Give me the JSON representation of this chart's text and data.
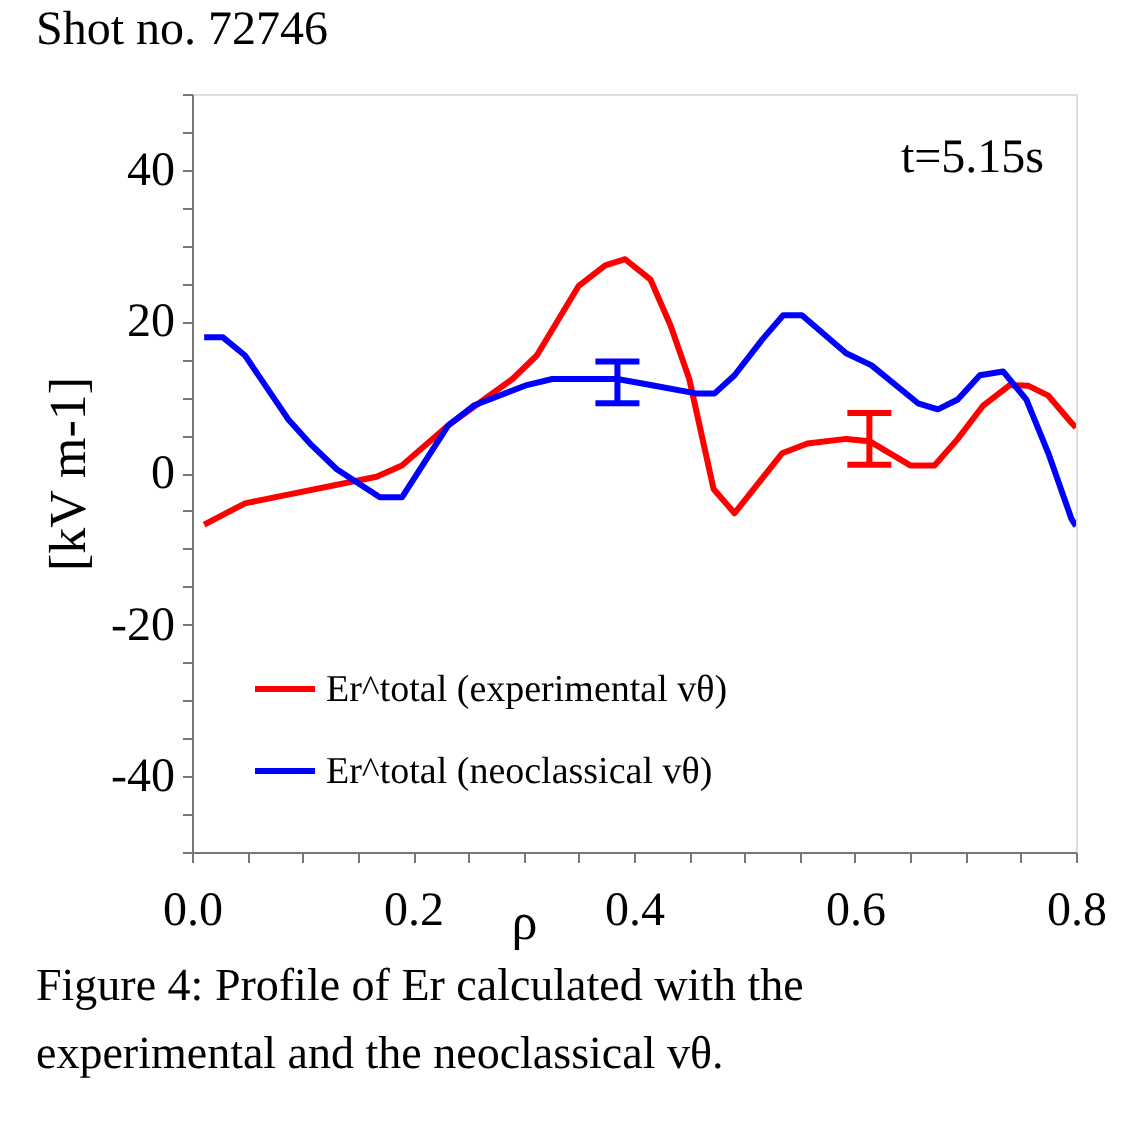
{
  "chart_data": {
    "type": "line",
    "title": "Shot no. 72746",
    "xlabel": "ρ",
    "ylabel": "[kV m-1]",
    "annotations": [
      "t=5.15s",
      "Figure 4: Profile of Er calculated with the experimental and the neoclassical vθ."
    ],
    "series": [
      {
        "name": "Er^total (experimental vθ)",
        "color": "#ff0000",
        "x": [
          0.011,
          0.048,
          0.167,
          0.19,
          0.232,
          0.29,
          0.312,
          0.35,
          0.374,
          0.392,
          0.415,
          0.433,
          0.45,
          0.472,
          0.491,
          0.534,
          0.557,
          0.592,
          0.613,
          0.65,
          0.672,
          0.693,
          0.716,
          0.74,
          0.757,
          0.775,
          0.796,
          0.8
        ],
        "values": [
          -6.8,
          -4,
          -0.5,
          1,
          6.3,
          12.4,
          15.5,
          24.7,
          27.4,
          28.2,
          25.5,
          19.5,
          12.4,
          -2.1,
          -5.3,
          2.6,
          3.9,
          4.5,
          4.2,
          1,
          1,
          4.5,
          8.9,
          11.6,
          11.5,
          10.2,
          6.6,
          6
        ],
        "errors": [
          null,
          null,
          null,
          null,
          null,
          null,
          null,
          null,
          null,
          null,
          null,
          null,
          null,
          null,
          null,
          null,
          null,
          null,
          [
            1.1,
            7.9
          ],
          null,
          null,
          null,
          null,
          null,
          null,
          null,
          null,
          null
        ]
      },
      {
        "name": "Er^total (neoclassical vθ)",
        "color": "#0000ff",
        "x": [
          0.011,
          0.028,
          0.048,
          0.087,
          0.108,
          0.131,
          0.17,
          0.19,
          0.232,
          0.255,
          0.303,
          0.326,
          0.385,
          0.415,
          0.456,
          0.473,
          0.491,
          0.516,
          0.535,
          0.552,
          0.592,
          0.615,
          0.657,
          0.675,
          0.693,
          0.713,
          0.734,
          0.755,
          0.775,
          0.796,
          0.8
        ],
        "values": [
          17.9,
          17.9,
          15.5,
          7.1,
          3.7,
          0.5,
          -3.2,
          -3.2,
          6.3,
          8.9,
          11.6,
          12.4,
          12.4,
          11.6,
          10.5,
          10.5,
          12.9,
          17.6,
          20.8,
          20.8,
          15.8,
          14.2,
          9.2,
          8.4,
          9.7,
          12.9,
          13.4,
          9.7,
          2.6,
          -6.1,
          -7
        ],
        "errors": [
          null,
          null,
          null,
          null,
          null,
          null,
          null,
          null,
          null,
          null,
          null,
          null,
          [
            9.2,
            14.7
          ],
          null,
          null,
          null,
          null,
          null,
          null,
          null,
          null,
          null,
          null,
          null,
          null,
          null,
          null,
          null,
          null,
          null,
          null
        ]
      }
    ],
    "xlim": [
      0,
      0.8
    ],
    "xticks": [
      {
        "value": 0,
        "label": "0.0"
      },
      {
        "value": 0.05,
        "label": null
      },
      {
        "value": 0.1,
        "label": null
      },
      {
        "value": 0.15,
        "label": null
      },
      {
        "value": 0.2,
        "label": "0.2"
      },
      {
        "value": 0.25,
        "label": null
      },
      {
        "value": 0.3,
        "label": null
      },
      {
        "value": 0.35,
        "label": null
      },
      {
        "value": 0.4,
        "label": "0.4"
      },
      {
        "value": 0.45,
        "label": null
      },
      {
        "value": 0.5,
        "label": null
      },
      {
        "value": 0.55,
        "label": null
      },
      {
        "value": 0.6,
        "label": "0.6"
      },
      {
        "value": 0.65,
        "label": null
      },
      {
        "value": 0.7,
        "label": null
      },
      {
        "value": 0.75,
        "label": null
      },
      {
        "value": 0.8,
        "label": "0.8"
      }
    ],
    "ylim": [
      -50,
      50
    ],
    "yticks": [
      {
        "value": -50,
        "label": null
      },
      {
        "value": -45,
        "label": null
      },
      -40,
      {
        "value": -35,
        "label": null
      },
      {
        "value": -30,
        "label": null
      },
      {
        "value": -25,
        "label": null
      },
      -20,
      {
        "value": -15,
        "label": null
      },
      {
        "value": -10,
        "label": null
      },
      {
        "value": -5,
        "label": null
      },
      0,
      {
        "value": 5,
        "label": null
      },
      {
        "value": 10,
        "label": null
      },
      {
        "value": 15,
        "label": null
      },
      20,
      {
        "value": 25,
        "label": null
      },
      {
        "value": 30,
        "label": null
      },
      {
        "value": 35,
        "label": null
      },
      40,
      {
        "value": 45,
        "label": null
      },
      {
        "value": 50,
        "label": null
      }
    ],
    "grid": false,
    "legend": "bottom left",
    "line_style": "solid",
    "marker": "none"
  }
}
